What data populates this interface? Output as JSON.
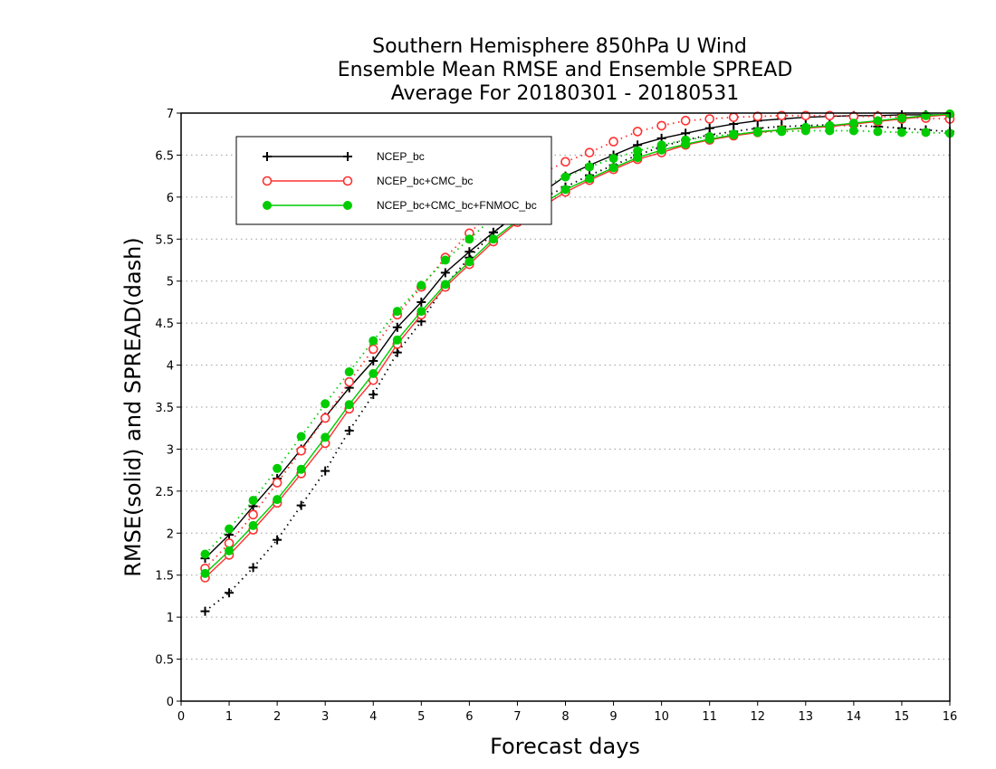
{
  "chart_data": {
    "type": "line",
    "title": [
      "Southern Hemisphere 850hPa U Wind",
      "Ensemble Mean RMSE and Ensemble SPREAD",
      "Average For 20180301 - 20180531"
    ],
    "xlabel": "Forecast days",
    "ylabel": "RMSE(solid) and SPREAD(dash)",
    "xlim": [
      0,
      16
    ],
    "ylim": [
      0,
      7
    ],
    "xticks": [
      0,
      1,
      2,
      3,
      4,
      5,
      6,
      7,
      8,
      9,
      10,
      11,
      12,
      13,
      14,
      15,
      16
    ],
    "yticks": [
      0,
      0.5,
      1,
      1.5,
      2,
      2.5,
      3,
      3.5,
      4,
      4.5,
      5,
      5.5,
      6,
      6.5,
      7
    ],
    "ytick_labels": [
      "0",
      "0.5",
      "1",
      "1.5",
      "2",
      "2.5",
      "3",
      "3.5",
      "4",
      "4.5",
      "5",
      "5.5",
      "6",
      "6.5",
      "7"
    ],
    "grid": "horizontal dotted",
    "legend_position": "top-left",
    "x": [
      0.5,
      1,
      1.5,
      2,
      2.5,
      3,
      3.5,
      4,
      4.5,
      5,
      5.5,
      6,
      6.5,
      7,
      7.5,
      8,
      8.5,
      9,
      9.5,
      10,
      10.5,
      11,
      11.5,
      12,
      12.5,
      13,
      13.5,
      14,
      14.5,
      15,
      15.5,
      16
    ],
    "series": [
      {
        "name": "NCEP_bc",
        "color": "#000000",
        "marker": "plus",
        "rmse": [
          1.7,
          1.98,
          2.32,
          2.65,
          3.0,
          3.38,
          3.73,
          4.05,
          4.45,
          4.75,
          5.1,
          5.35,
          5.58,
          5.8,
          6.05,
          6.25,
          6.38,
          6.5,
          6.62,
          6.7,
          6.76,
          6.82,
          6.87,
          6.91,
          6.93,
          6.95,
          6.96,
          6.97,
          6.97,
          6.98,
          6.98,
          6.98
        ],
        "spread": [
          1.07,
          1.29,
          1.59,
          1.92,
          2.33,
          2.74,
          3.22,
          3.65,
          4.15,
          4.52,
          4.95,
          5.28,
          5.58,
          5.8,
          5.98,
          6.12,
          6.26,
          6.38,
          6.5,
          6.6,
          6.68,
          6.74,
          6.78,
          6.82,
          6.84,
          6.85,
          6.86,
          6.85,
          6.84,
          6.82,
          6.8,
          6.78
        ]
      },
      {
        "name": "NCEP_bc+CMC_bc",
        "color": "#ff3030",
        "marker": "open-circle",
        "rmse": [
          1.47,
          1.74,
          2.04,
          2.36,
          2.71,
          3.07,
          3.48,
          3.82,
          4.25,
          4.6,
          4.93,
          5.2,
          5.47,
          5.7,
          5.88,
          6.06,
          6.2,
          6.33,
          6.45,
          6.53,
          6.62,
          6.68,
          6.73,
          6.77,
          6.8,
          6.82,
          6.84,
          6.87,
          6.9,
          6.93,
          6.96,
          6.98
        ],
        "spread": [
          1.58,
          1.88,
          2.22,
          2.6,
          2.98,
          3.37,
          3.8,
          4.19,
          4.6,
          4.93,
          5.28,
          5.57,
          5.85,
          6.08,
          6.28,
          6.42,
          6.53,
          6.66,
          6.78,
          6.85,
          6.91,
          6.93,
          6.95,
          6.96,
          6.97,
          6.97,
          6.97,
          6.96,
          6.96,
          6.95,
          6.94,
          6.93
        ]
      },
      {
        "name": "NCEP_bc+CMC_bc+FNMOC_bc",
        "color": "#00cc00",
        "marker": "filled-circle",
        "rmse": [
          1.52,
          1.79,
          2.09,
          2.4,
          2.76,
          3.14,
          3.53,
          3.9,
          4.3,
          4.64,
          4.96,
          5.23,
          5.5,
          5.72,
          5.91,
          6.09,
          6.22,
          6.35,
          6.47,
          6.56,
          6.63,
          6.69,
          6.74,
          6.78,
          6.8,
          6.83,
          6.85,
          6.88,
          6.91,
          6.94,
          6.97,
          6.99
        ],
        "spread": [
          1.75,
          2.05,
          2.39,
          2.77,
          3.15,
          3.54,
          3.92,
          4.29,
          4.64,
          4.95,
          5.25,
          5.5,
          5.76,
          5.95,
          6.12,
          6.24,
          6.36,
          6.46,
          6.55,
          6.62,
          6.68,
          6.72,
          6.75,
          6.77,
          6.78,
          6.79,
          6.79,
          6.79,
          6.78,
          6.77,
          6.77,
          6.76
        ]
      }
    ]
  }
}
